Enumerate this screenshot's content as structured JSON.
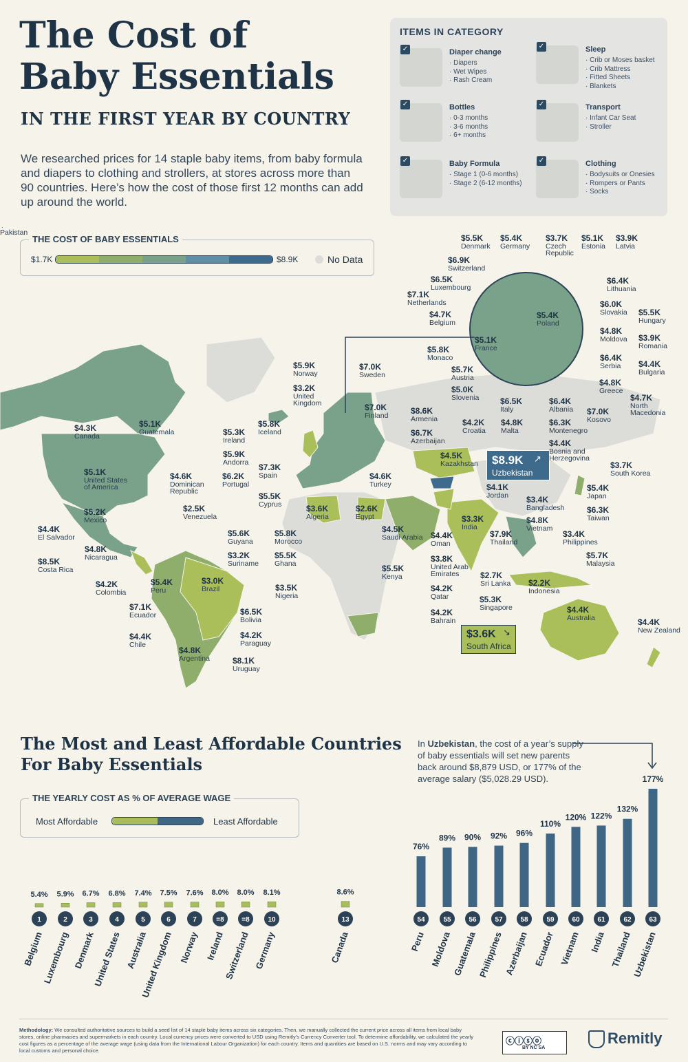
{
  "header": {
    "title_line1": "The Cost of",
    "title_line2": "Baby Essentials",
    "subtitle": "IN THE FIRST YEAR BY COUNTRY",
    "intro": "We researched prices for 14 staple baby items, from baby formula and diapers to clothing and strollers, at stores across more than 90 countries. Here’s how the cost of those first 12 months can add up around the world."
  },
  "categories": {
    "heading": "ITEMS IN CATEGORY",
    "items": [
      {
        "name": "Diaper change",
        "items": [
          "· Diapers",
          "· Wet Wipes",
          "· Rash Cream"
        ]
      },
      {
        "name": "Sleep",
        "items": [
          "· Crib or Moses basket",
          "· Crib Mattress",
          "· Fitted Sheets",
          "· Blankets"
        ]
      },
      {
        "name": "Bottles",
        "items": [
          "· 0-3 months",
          "· 3-6 months",
          "· 6+ months"
        ]
      },
      {
        "name": "Transport",
        "items": [
          "· Infant Car Seat",
          "· Stroller"
        ]
      },
      {
        "name": "Baby Formula",
        "items": [
          "· Stage 1 (0-6 months)",
          "· Stage 2 (6-12 months)"
        ]
      },
      {
        "name": "Clothing",
        "items": [
          "· Bodysuits or Onesies",
          "· Rompers or Pants",
          "· Socks"
        ]
      }
    ]
  },
  "map_legend": {
    "title": "THE COST OF BABY ESSENTIALS",
    "min": "$1.7K",
    "max": "$8.9K",
    "nodata": "No Data",
    "colors": [
      "#aabf5a",
      "#8fae6c",
      "#7aa28a",
      "#5f8ea7",
      "#3e6a8c"
    ]
  },
  "map_labels": [
    {
      "val": "$5.5K",
      "name": "Denmark"
    },
    {
      "val": "$5.4K",
      "name": "Germany"
    },
    {
      "val": "$3.7K",
      "name": "Czech Republic"
    },
    {
      "val": "$5.1K",
      "name": "Estonia"
    },
    {
      "val": "$3.9K",
      "name": "Latvia"
    },
    {
      "val": "$6.9K",
      "name": "Switzerland"
    },
    {
      "val": "$6.5K",
      "name": "Luxembourg"
    },
    {
      "val": "$7.1K",
      "name": "Netherlands"
    },
    {
      "val": "$6.4K",
      "name": "Lithuania"
    },
    {
      "val": "$4.7K",
      "name": "Belgium"
    },
    {
      "val": "$6.0K",
      "name": "Slovakia"
    },
    {
      "val": "$5.5K",
      "name": "Hungary"
    },
    {
      "val": "$5.4K",
      "name": "Poland"
    },
    {
      "val": "$4.8K",
      "name": "Moldova"
    },
    {
      "val": "$5.1K",
      "name": "France"
    },
    {
      "val": "$3.9K",
      "name": "Romania"
    },
    {
      "val": "$5.8K",
      "name": "Monaco"
    },
    {
      "val": "$6.4K",
      "name": "Serbia"
    },
    {
      "val": "$4.4K",
      "name": "Bulgaria"
    },
    {
      "val": "$5.9K",
      "name": "Norway"
    },
    {
      "val": "$7.0K",
      "name": "Sweden"
    },
    {
      "val": "$5.7K",
      "name": "Austria"
    },
    {
      "val": "$4.8K",
      "name": "Greece"
    },
    {
      "val": "$3.2K",
      "name": "United Kingdom"
    },
    {
      "val": "$5.0K",
      "name": "Slovenia"
    },
    {
      "val": "$4.7K",
      "name": "North Macedonia"
    },
    {
      "val": "$6.5K",
      "name": "Italy"
    },
    {
      "val": "$6.4K",
      "name": "Albania"
    },
    {
      "val": "$7.0K",
      "name": "Kosovo"
    },
    {
      "val": "$7.0K",
      "name": "Finland"
    },
    {
      "val": "$8.6K",
      "name": "Armenia"
    },
    {
      "val": "$5.8K",
      "name": "Iceland"
    },
    {
      "val": "$4.2K",
      "name": "Croatia"
    },
    {
      "val": "$4.8K",
      "name": "Malta"
    },
    {
      "val": "$6.3K",
      "name": "Montenegro"
    },
    {
      "val": "$4.3K",
      "name": "Canada"
    },
    {
      "val": "$5.1K",
      "name": "Guatemala"
    },
    {
      "val": "$5.3K",
      "name": "Ireland"
    },
    {
      "val": "$6.7K",
      "name": "Azerbaijan"
    },
    {
      "val": "$4.4K",
      "name": "Bosnia and Herzegovina"
    },
    {
      "val": "$5.9K",
      "name": "Andorra"
    },
    {
      "val": "$4.5K",
      "name": "Kazakhstan"
    },
    {
      "val": "$8.9K",
      "name": "Uzbekistan"
    },
    {
      "val": "$3.7K",
      "name": "South Korea"
    },
    {
      "val": "$7.3K",
      "name": "Spain"
    },
    {
      "val": "$5.1K",
      "name": "United States of America"
    },
    {
      "val": "$4.6K",
      "name": "Dominican Republic"
    },
    {
      "val": "$6.2K",
      "name": "Portugal"
    },
    {
      "val": "$4.6K",
      "name": "Turkey"
    },
    {
      "val": "$4.1K",
      "name": "Jordan"
    },
    {
      "val": "$5.4K",
      "name": "Japan"
    },
    {
      "val": "$5.5K",
      "name": "Cyprus"
    },
    {
      "val": "$3.4K",
      "name": "Bangladesh"
    },
    {
      "val": "$6.3K",
      "name": "Taiwan"
    },
    {
      "val": "$5.2K",
      "name": "Mexico"
    },
    {
      "val": "$2.5K",
      "name": "Venezuela"
    },
    {
      "val": "$3.6K",
      "name": "Algeria"
    },
    {
      "val": "$2.6K",
      "name": "Egypt"
    },
    {
      "val": "$3.3K",
      "name": "India"
    },
    {
      "val": "$4.8K",
      "name": "Vietnam"
    },
    {
      "val": "$4.4K",
      "name": "El Salvador"
    },
    {
      "val": "$5.6K",
      "name": "Guyana"
    },
    {
      "val": "$5.8K",
      "name": "Morocco"
    },
    {
      "val": "$4.5K",
      "name": "Saudi Arabia"
    },
    {
      "val": "$4.4K",
      "name": "Oman"
    },
    {
      "val": "$7.9K",
      "name": "Thailand"
    },
    {
      "val": "$3.4K",
      "name": "Philippines"
    },
    {
      "val": "$4.8K",
      "name": "Nicaragua"
    },
    {
      "val": "$3.2K",
      "name": "Suriname"
    },
    {
      "val": "$5.5K",
      "name": "Ghana"
    },
    {
      "val": "$3.8K",
      "name": "United Arab Emirates"
    },
    {
      "val": "$5.7K",
      "name": "Malaysia"
    },
    {
      "val": "$8.5K",
      "name": "Costa Rica"
    },
    {
      "val": "$5.5K",
      "name": "Kenya"
    },
    {
      "val": "$2.7K",
      "name": "Sri Lanka"
    },
    {
      "val": "$4.2K",
      "name": "Colombia"
    },
    {
      "val": "$5.4K",
      "name": "Peru"
    },
    {
      "val": "$3.0K",
      "name": "Brazil"
    },
    {
      "val": "$3.5K",
      "name": "Nigeria"
    },
    {
      "val": "$4.2K",
      "name": "Qatar"
    },
    {
      "val": "$2.2K",
      "name": "Indonesia"
    },
    {
      "val": "$5.3K",
      "name": "Singapore"
    },
    {
      "val": "$7.1K",
      "name": "Ecuador"
    },
    {
      "val": "$6.5K",
      "name": "Bolivia"
    },
    {
      "val": "$4.4K",
      "name": "Australia"
    },
    {
      "val": "$4.2K",
      "name": "Bahrain"
    },
    {
      "val": "$1.7K",
      "name": "Pakistan"
    },
    {
      "val": "$3.6K",
      "name": "South Africa"
    },
    {
      "val": "$4.4K",
      "name": "Chile"
    },
    {
      "val": "$4.2K",
      "name": "Paraguay"
    },
    {
      "val": "$4.4K",
      "name": "New Zealand"
    },
    {
      "val": "$4.8K",
      "name": "Argentina"
    },
    {
      "val": "$8.1K",
      "name": "Uruguay"
    }
  ],
  "section2": {
    "title_line1": "The Most and Least Affordable Countries",
    "title_line2": "For Baby Essentials",
    "legend_title": "THE YEARLY COST AS % OF AVERAGE WAGE",
    "legend_low": "Most Affordable",
    "legend_high": "Least Affordable",
    "note_prefix": "In ",
    "note_bold": "Uzbekistan",
    "note_rest": ", the cost of a year’s supply of baby essentials will set new parents back around $8,879 USD, or 177% of the average salary ($5,028.29 USD)."
  },
  "chart_data": {
    "type": "bar",
    "title": "The Most and Least Affordable Countries For Baby Essentials",
    "ylabel": "The yearly cost as % of average wage",
    "ylim": [
      0,
      177
    ],
    "categories": [
      "Belgium",
      "Luxembourg",
      "Denmark",
      "United States",
      "Australia",
      "United Kingdom",
      "Norway",
      "Ireland",
      "Switzerland",
      "Germany",
      "Canada",
      "Peru",
      "Moldova",
      "Guatemala",
      "Philippines",
      "Azerbaijan",
      "Ecuador",
      "Vietnam",
      "India",
      "Thailand",
      "Uzbekistan"
    ],
    "ranks": [
      "1",
      "2",
      "3",
      "4",
      "5",
      "6",
      "7",
      "=8",
      "=8",
      "10",
      "13",
      "54",
      "55",
      "56",
      "57",
      "58",
      "59",
      "60",
      "61",
      "62",
      "63"
    ],
    "values": [
      5.4,
      5.9,
      6.7,
      6.8,
      7.4,
      7.5,
      7.6,
      8.0,
      8.0,
      8.1,
      8.6,
      76,
      89,
      90,
      92,
      96,
      110,
      120,
      122,
      132,
      177
    ],
    "value_labels": [
      "5.4%",
      "5.9%",
      "6.7%",
      "6.8%",
      "7.4%",
      "7.5%",
      "7.6%",
      "8.0%",
      "8.0%",
      "8.1%",
      "8.6%",
      "76%",
      "89%",
      "90%",
      "92%",
      "96%",
      "110%",
      "120%",
      "122%",
      "132%",
      "177%"
    ],
    "colors": {
      "affordable": "#a9bd5c",
      "unaffordable": "#3f6684"
    }
  },
  "footer": {
    "methodology_label": "Methodology:",
    "methodology": "We consulted authoritative sources to build a seed list of 14 staple baby items across six categories. Then, we manually collected the current price across all items from local baby stores, online pharmacies and supermarkets in each country. Local currency prices were converted to USD using Remitly’s Currency Converter tool. To determine affordability, we calculated the yearly cost figures as a percentage of the average wage (using data from the International Labour Organization) for each country. Items and quantities are based on U.S. norms and may vary according to local customs and personal choice.",
    "license": "BY NC SA",
    "brand": "Remitly"
  }
}
